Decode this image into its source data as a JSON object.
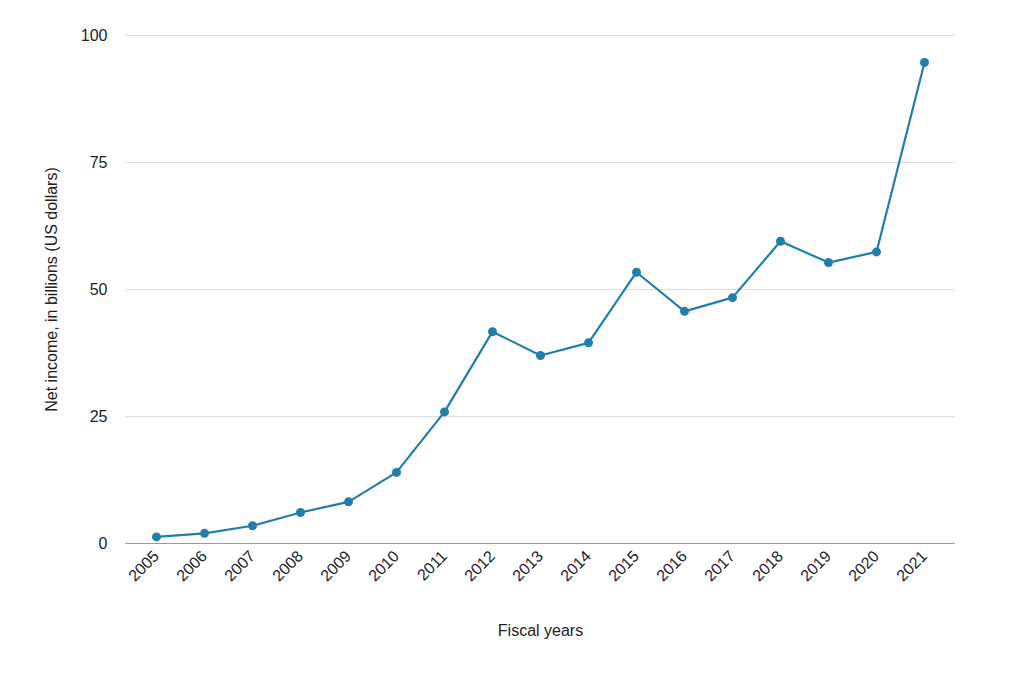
{
  "chart_data": {
    "type": "line",
    "x_label": "Fiscal years",
    "y_label": "Net income, in billions (US dollars)",
    "categories": [
      "2005",
      "2006",
      "2007",
      "2008",
      "2009",
      "2010",
      "2011",
      "2012",
      "2013",
      "2014",
      "2015",
      "2016",
      "2017",
      "2018",
      "2019",
      "2020",
      "2021"
    ],
    "values": [
      1.3,
      2.0,
      3.5,
      6.1,
      8.2,
      14.0,
      25.9,
      41.7,
      37.0,
      39.5,
      53.4,
      45.7,
      48.4,
      59.5,
      55.3,
      57.4,
      94.7
    ],
    "color": "#1f7eab",
    "marker": "circle",
    "ylim": [
      0,
      100
    ],
    "yticks": [
      0,
      25,
      50,
      75,
      100
    ],
    "grid": true
  }
}
